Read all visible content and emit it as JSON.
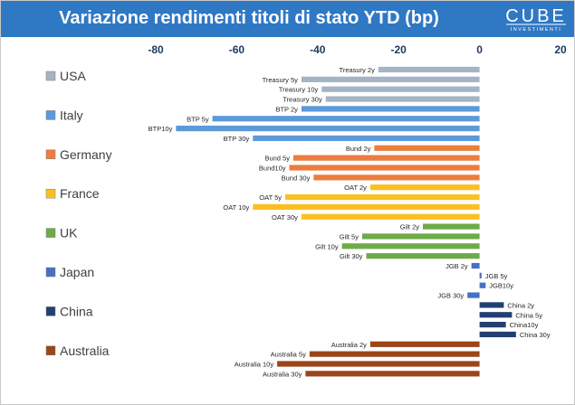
{
  "header": {
    "title": "Variazione rendimenti titoli di stato YTD (bp)",
    "logo_text": "CUBE",
    "logo_subtext": "INVESTIMENTI"
  },
  "chart_data": {
    "type": "bar",
    "orientation": "horizontal",
    "title": "Variazione rendimenti titoli di stato YTD (bp)",
    "xlim": [
      -80,
      20
    ],
    "xticks": [
      "-80",
      "-60",
      "-40",
      "-20",
      "0",
      "20"
    ],
    "xtick_values": [
      -80,
      -60,
      -40,
      -20,
      0,
      20
    ],
    "axis_position": "top",
    "grid": false,
    "legend_position": "left",
    "series": [
      {
        "name": "USA",
        "color": "#a5b4c4",
        "bars": [
          {
            "label": "Treasury 2y",
            "value": -25
          },
          {
            "label": "Treasury 5y",
            "value": -44
          },
          {
            "label": "Treasury 10y",
            "value": -39
          },
          {
            "label": "Treasury 30y",
            "value": -38
          }
        ]
      },
      {
        "name": "Italy",
        "color": "#5b9ad9",
        "bars": [
          {
            "label": "BTP 2y",
            "value": -44
          },
          {
            "label": "BTP 5y",
            "value": -66
          },
          {
            "label": "BTP10y",
            "value": -75
          },
          {
            "label": "BTP 30y",
            "value": -56
          }
        ]
      },
      {
        "name": "Germany",
        "color": "#ec7d3e",
        "bars": [
          {
            "label": "Bund 2y",
            "value": -26
          },
          {
            "label": "Bund 5y",
            "value": -46
          },
          {
            "label": "Bund10y",
            "value": -47
          },
          {
            "label": "Bund 30y",
            "value": -41
          }
        ]
      },
      {
        "name": "France",
        "color": "#fcbf22",
        "bars": [
          {
            "label": "OAT 2y",
            "value": -27
          },
          {
            "label": "OAT 5y",
            "value": -48
          },
          {
            "label": "OAT 10y",
            "value": -56
          },
          {
            "label": "OAT 30y",
            "value": -44
          }
        ]
      },
      {
        "name": "UK",
        "color": "#6eab48",
        "bars": [
          {
            "label": "Gilt 2y",
            "value": -14
          },
          {
            "label": "Gilt 5y",
            "value": -29
          },
          {
            "label": "Gilt 10y",
            "value": -34
          },
          {
            "label": "Gilt 30y",
            "value": -28
          }
        ]
      },
      {
        "name": "Japan",
        "color": "#4670c4",
        "bars": [
          {
            "label": "JGB 2y",
            "value": -2
          },
          {
            "label": "JGB 5y",
            "value": 0.5
          },
          {
            "label": "JGB10y",
            "value": 1.5
          },
          {
            "label": "JGB 30y",
            "value": -3
          }
        ]
      },
      {
        "name": "China",
        "color": "#223f72",
        "bars": [
          {
            "label": "China 2y",
            "value": 6
          },
          {
            "label": "China  5y",
            "value": 8
          },
          {
            "label": "China10y",
            "value": 6.5
          },
          {
            "label": "China 30y",
            "value": 9
          }
        ]
      },
      {
        "name": "Australia",
        "color": "#9b4519",
        "bars": [
          {
            "label": "Australia 2y",
            "value": -27
          },
          {
            "label": "Australia  5y",
            "value": -42
          },
          {
            "label": "Australia 10y",
            "value": -50
          },
          {
            "label": "Australia 30y",
            "value": -43
          }
        ]
      }
    ]
  }
}
